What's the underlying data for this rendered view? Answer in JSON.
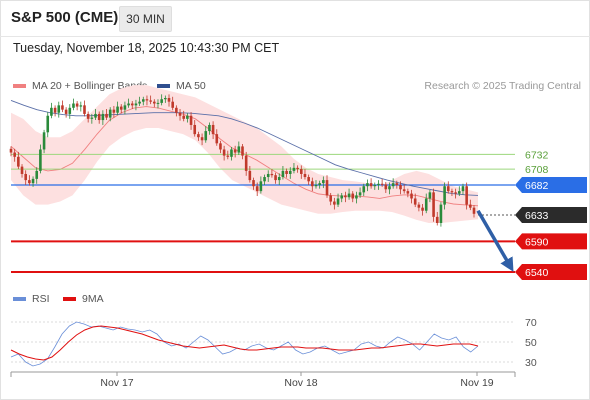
{
  "header": {
    "title": "S&P 500 (CME)",
    "timeframe": "30 MIN"
  },
  "datetime": "Tuesday, November 18, 2025 10:43:30 PM CET",
  "legend": {
    "bollinger": "MA 20 + Bollinger Bands",
    "ma50": "MA 50",
    "credit": "Research © 2025 Trading Central"
  },
  "rsi_legend": {
    "rsi": "RSI",
    "ma": "9MA"
  },
  "colors": {
    "bollinger": "#f08080",
    "band_fill": "#fde0e0",
    "ma50": "#5a6fa8",
    "resistance": "#9bd77c",
    "pivot": "#2a6ee6",
    "support": "#e01010",
    "current": "#2b2b2b",
    "arrow": "#2f5fa6",
    "bull": "#2a8a3a",
    "bear": "#c0392b",
    "rsi": "#6a8fd8",
    "rsi_ma": "#e01010"
  },
  "chart_data": [
    {
      "type": "candlestick",
      "title": "S&P 500 (CME)",
      "timeframe": "30 MIN",
      "x_ticks": [
        "Nov 17",
        "Nov 18",
        "Nov 19"
      ],
      "ylim": [
        6520,
        6770
      ],
      "key_levels": [
        {
          "value": 6732,
          "label": "6732",
          "kind": "resistance"
        },
        {
          "value": 6708,
          "label": "6708",
          "kind": "resistance"
        },
        {
          "value": 6682,
          "label": "6682",
          "kind": "pivot"
        },
        {
          "value": 6633,
          "label": "6633",
          "kind": "current"
        },
        {
          "value": 6590,
          "label": "6590",
          "kind": "support"
        },
        {
          "value": 6540,
          "label": "6540",
          "kind": "support"
        }
      ],
      "forecast": {
        "from": 6640,
        "to": 6550,
        "direction": "down"
      },
      "close": [
        6735,
        6728,
        6712,
        6700,
        6690,
        6685,
        6692,
        6705,
        6740,
        6768,
        6795,
        6808,
        6800,
        6812,
        6805,
        6798,
        6808,
        6815,
        6810,
        6812,
        6798,
        6790,
        6792,
        6798,
        6788,
        6798,
        6792,
        6805,
        6800,
        6810,
        6805,
        6812,
        6815,
        6812,
        6815,
        6818,
        6822,
        6820,
        6818,
        6815,
        6816,
        6822,
        6824,
        6818,
        6808,
        6800,
        6795,
        6790,
        6795,
        6780,
        6765,
        6760,
        6755,
        6770,
        6780,
        6765,
        6750,
        6740,
        6730,
        6728,
        6740,
        6735,
        6745,
        6730,
        6705,
        6690,
        6680,
        6672,
        6688,
        6695,
        6700,
        6698,
        6690,
        6695,
        6705,
        6700,
        6705,
        6710,
        6708,
        6700,
        6695,
        6688,
        6680,
        6682,
        6685,
        6690,
        6665,
        6655,
        6650,
        6660,
        6665,
        6662,
        6668,
        6660,
        6665,
        6670,
        6680,
        6685,
        6680,
        6682,
        6684,
        6683,
        6675,
        6680,
        6685,
        6682,
        6675,
        6672,
        6668,
        6660,
        6650,
        6645,
        6640,
        6660,
        6670,
        6630,
        6620,
        6650,
        6680,
        6672,
        6670,
        6668,
        6672,
        6680,
        6650,
        6645,
        6635
      ],
      "bollinger": {
        "upper": [
          6800,
          6790,
          6770,
          6760,
          6760,
          6770,
          6790,
          6810,
          6830,
          6840,
          6845,
          6845,
          6840,
          6835,
          6830,
          6825,
          6815,
          6805,
          6795,
          6785,
          6775,
          6760,
          6745,
          6725,
          6710,
          6700,
          6695,
          6690,
          6688,
          6685,
          6680,
          6690,
          6700,
          6705,
          6700,
          6690,
          6680,
          6675,
          6670
        ],
        "lower": [
          6690,
          6665,
          6650,
          6650,
          6655,
          6665,
          6690,
          6720,
          6745,
          6760,
          6770,
          6775,
          6775,
          6770,
          6765,
          6755,
          6735,
          6710,
          6690,
          6680,
          6670,
          6660,
          6650,
          6645,
          6640,
          6635,
          6635,
          6638,
          6640,
          6640,
          6640,
          6638,
          6632,
          6625,
          6620,
          6620,
          6622,
          6624,
          6626
        ]
      },
      "ma50": [
        6820,
        6812,
        6805,
        6800,
        6797,
        6795,
        6795,
        6796,
        6797,
        6798,
        6799,
        6800,
        6800,
        6800,
        6799,
        6797,
        6795,
        6790,
        6783,
        6775,
        6765,
        6755,
        6745,
        6735,
        6725,
        6715,
        6708,
        6702,
        6696,
        6690,
        6685,
        6680,
        6676,
        6672,
        6668,
        6666,
        6665
      ]
    },
    {
      "type": "line",
      "title": "RSI",
      "y_ticks": [
        70,
        50,
        30
      ],
      "ylim": [
        20,
        80
      ],
      "series": [
        {
          "name": "RSI",
          "values": [
            35,
            38,
            30,
            26,
            28,
            33,
            45,
            58,
            66,
            70,
            68,
            65,
            66,
            64,
            62,
            65,
            63,
            62,
            60,
            62,
            58,
            50,
            46,
            48,
            44,
            50,
            56,
            52,
            45,
            38,
            40,
            44,
            42,
            46,
            48,
            44,
            42,
            46,
            50,
            42,
            38,
            40,
            44,
            46,
            42,
            38,
            40,
            42,
            48,
            50,
            46,
            44,
            50,
            55,
            52,
            48,
            42,
            50,
            58,
            54,
            52,
            55,
            45,
            40,
            46
          ]
        },
        {
          "name": "9MA",
          "values": [
            42,
            38,
            35,
            33,
            32,
            35,
            42,
            50,
            57,
            62,
            65,
            66,
            65,
            64,
            62,
            60,
            58,
            55,
            52,
            50,
            48,
            46,
            45,
            44,
            45,
            46,
            47,
            45,
            43,
            42,
            42,
            43,
            44,
            45,
            45,
            45,
            44,
            44,
            44,
            43,
            42,
            42,
            42,
            43,
            44,
            44,
            45,
            46,
            47,
            48,
            48,
            47,
            46,
            47,
            48,
            48,
            48,
            46
          ]
        }
      ]
    }
  ]
}
